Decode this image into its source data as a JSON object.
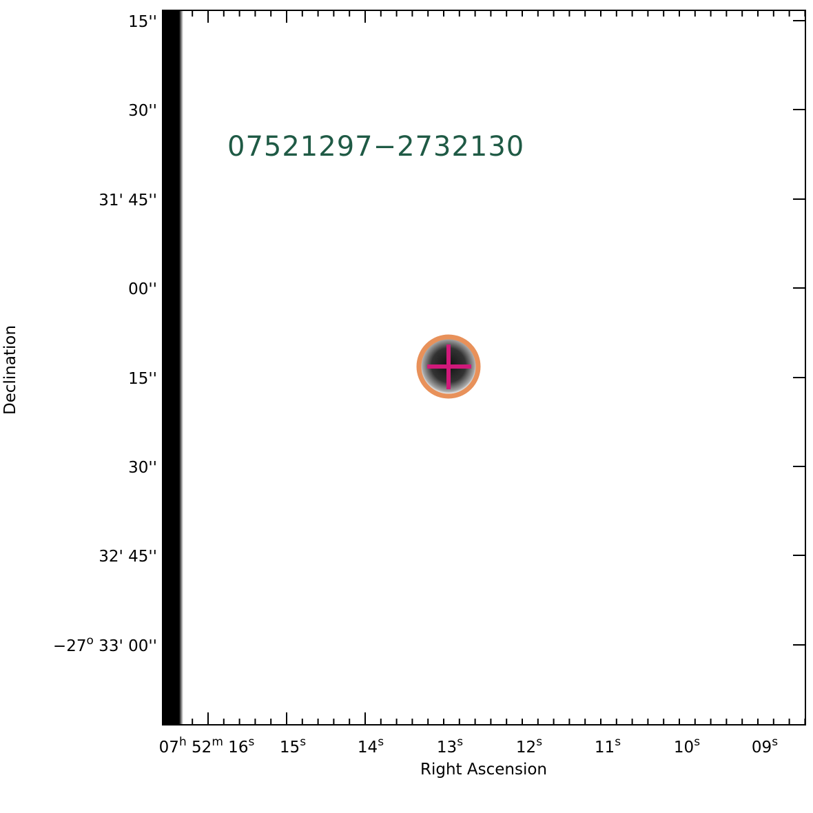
{
  "object_label": "07521297−2732130",
  "x_axis": {
    "title": "Right Ascension",
    "ticks": [
      [
        {
          "t": "07"
        },
        {
          "sup": "h"
        },
        {
          "t": " 52"
        },
        {
          "sup": "m"
        },
        {
          "t": " 16"
        },
        {
          "sup": "s"
        }
      ],
      [
        {
          "t": "15"
        },
        {
          "sup": "s"
        }
      ],
      [
        {
          "t": "14"
        },
        {
          "sup": "s"
        }
      ],
      [
        {
          "t": "13"
        },
        {
          "sup": "s"
        }
      ],
      [
        {
          "t": "12"
        },
        {
          "sup": "s"
        }
      ],
      [
        {
          "t": "11"
        },
        {
          "sup": "s"
        }
      ],
      [
        {
          "t": "10"
        },
        {
          "sup": "s"
        }
      ],
      [
        {
          "t": "09"
        },
        {
          "sup": "s"
        }
      ]
    ]
  },
  "y_axis": {
    "title": "Declination",
    "ticks": [
      [
        {
          "t": "15''"
        }
      ],
      [
        {
          "t": "30''"
        }
      ],
      [
        {
          "t": "31' 45''"
        }
      ],
      [
        {
          "t": "00''"
        }
      ],
      [
        {
          "t": "15''"
        }
      ],
      [
        {
          "t": "30''"
        }
      ],
      [
        {
          "t": "32' 45''"
        }
      ],
      [
        {
          "t": "−27"
        },
        {
          "sup": "o"
        },
        {
          "t": " 33' 00''"
        }
      ]
    ]
  }
}
